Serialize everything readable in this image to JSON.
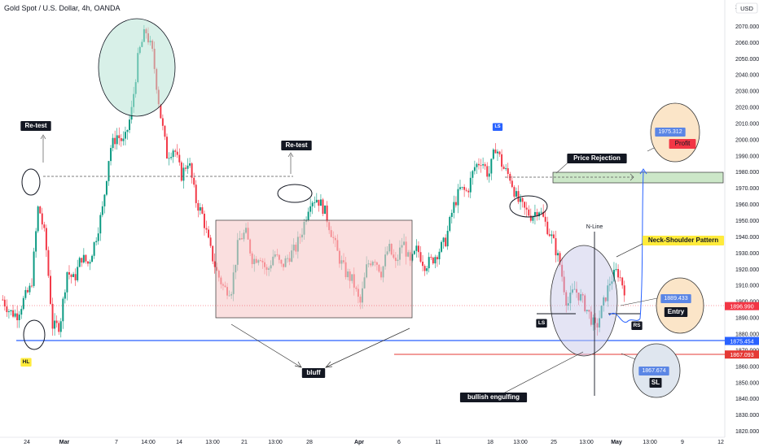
{
  "header": {
    "symbol_title": "Gold Spot / U.S. Dollar, 4h, OANDA"
  },
  "currency_button": "USD",
  "chart_data": {
    "type": "candlestick",
    "title": "Gold Spot / U.S. Dollar, 4h, OANDA",
    "ylim": [
      1816,
      2082
    ],
    "y_ticks": [
      2070,
      2060,
      2050,
      2040,
      2030,
      2020,
      2010,
      2000,
      1990,
      1980,
      1970,
      1960,
      1950,
      1940,
      1930,
      1920,
      1910,
      1900,
      1890,
      1880,
      1870,
      1860,
      1850,
      1840,
      1830,
      1820
    ],
    "y_tick_format": "2dp-comma-less-like-0.000",
    "x_tick_labels": [
      "24",
      "Mar",
      "7",
      "14:00",
      "14",
      "13:00",
      "21",
      "13:00",
      "28",
      "Apr",
      "6",
      "11",
      "18",
      "13:00",
      "25",
      "13:00",
      "May",
      "13:00",
      "9",
      "12"
    ],
    "price_path": [
      [
        1897,
        1905
      ],
      [
        1892,
        1895
      ],
      [
        1890,
        1893
      ],
      [
        1900,
        1903
      ],
      [
        1908,
        1910
      ],
      [
        1955,
        1965
      ],
      [
        1965,
        1910
      ],
      [
        1878,
        1890
      ],
      [
        1885,
        1885
      ],
      [
        1915,
        1922
      ],
      [
        1908,
        1918
      ],
      [
        1925,
        1930
      ],
      [
        1918,
        1928
      ],
      [
        1935,
        1942
      ],
      [
        1955,
        1960
      ],
      [
        1988,
        2000
      ],
      [
        2000,
        2005
      ],
      [
        1995,
        2000
      ],
      [
        2013,
        2020
      ],
      [
        2045,
        2060
      ],
      [
        2065,
        2070
      ],
      [
        2045,
        2060
      ],
      [
        2015,
        2020
      ],
      [
        1985,
        1995
      ],
      [
        1990,
        2000
      ],
      [
        1975,
        1980
      ],
      [
        1985,
        1990
      ],
      [
        1960,
        1965
      ],
      [
        1950,
        1955
      ],
      [
        1930,
        1935
      ],
      [
        1915,
        1920
      ],
      [
        1905,
        1910
      ],
      [
        1905,
        1910
      ],
      [
        1935,
        1940
      ],
      [
        1940,
        1945
      ],
      [
        1920,
        1930
      ],
      [
        1928,
        1930
      ],
      [
        1915,
        1920
      ],
      [
        1928,
        1932
      ],
      [
        1920,
        1922
      ],
      [
        1925,
        1930
      ],
      [
        1930,
        1935
      ],
      [
        1942,
        1948
      ],
      [
        1960,
        1965
      ],
      [
        1962,
        1965
      ],
      [
        1955,
        1958
      ],
      [
        1940,
        1945
      ],
      [
        1925,
        1930
      ],
      [
        1915,
        1920
      ],
      [
        1910,
        1915
      ],
      [
        1895,
        1900
      ],
      [
        1920,
        1925
      ],
      [
        1925,
        1930
      ],
      [
        1915,
        1920
      ],
      [
        1932,
        1935
      ],
      [
        1920,
        1925
      ],
      [
        1935,
        1940
      ],
      [
        1920,
        1925
      ],
      [
        1930,
        1935
      ],
      [
        1920,
        1925
      ],
      [
        1922,
        1928
      ],
      [
        1930,
        1932
      ],
      [
        1935,
        1940
      ],
      [
        1955,
        1960
      ],
      [
        1968,
        1970
      ],
      [
        1965,
        1970
      ],
      [
        1980,
        1985
      ],
      [
        1985,
        1990
      ],
      [
        1975,
        1980
      ],
      [
        1995,
        1997
      ],
      [
        1980,
        1985
      ],
      [
        1975,
        1978
      ],
      [
        1960,
        1965
      ],
      [
        1955,
        1958
      ],
      [
        1950,
        1955
      ],
      [
        1955,
        1960
      ],
      [
        1945,
        1950
      ],
      [
        1935,
        1940
      ],
      [
        1920,
        1925
      ],
      [
        1895,
        1900
      ],
      [
        1905,
        1910
      ],
      [
        1900,
        1903
      ],
      [
        1890,
        1895
      ],
      [
        1880,
        1885
      ],
      [
        1895,
        1900
      ],
      [
        1910,
        1915
      ],
      [
        1918,
        1920
      ],
      [
        1905,
        1910
      ]
    ],
    "series_colors": {
      "up": "#089981",
      "down": "#f23645"
    },
    "annotations": [
      {
        "type": "label",
        "text": "Re-test",
        "at": "x:'24'-'Mar', y:2005"
      },
      {
        "type": "label",
        "text": "Re-test",
        "at": "x:'21'-'28', y:1995"
      },
      {
        "type": "label",
        "text": "Price Rejection",
        "at": "x:'25', y:1988"
      },
      {
        "type": "label",
        "text": "Neck-Shoulder Pattern",
        "at": "x:'May', y:1938"
      },
      {
        "type": "label",
        "text": "bluff",
        "at": "x:'28', y:1856"
      },
      {
        "type": "label",
        "text": "bullish engulfing",
        "at": "x:'25', y:1842"
      },
      {
        "type": "label",
        "text": "N-Line",
        "at": "x:'13:00', y:1946"
      },
      {
        "type": "label",
        "text": "LS"
      },
      {
        "type": "label",
        "text": "RS"
      },
      {
        "type": "label",
        "text": "HL"
      },
      {
        "type": "label",
        "text": "LS",
        "badge": true
      },
      {
        "type": "target",
        "text": "Profit",
        "price": "1975.312"
      },
      {
        "type": "target",
        "text": "Entry",
        "price": "1889.433"
      },
      {
        "type": "target",
        "text": "SL",
        "price": "1867.674"
      },
      {
        "type": "dashed-line",
        "y": 1976
      },
      {
        "type": "rect",
        "name": "range-box",
        "y": [
          1890,
          1950
        ],
        "color": "#f5b7b7"
      },
      {
        "type": "rect",
        "name": "resistance-zone",
        "y": [
          1972,
          1979
        ],
        "color": "#b7ddb0"
      }
    ],
    "price_lines": [
      {
        "label": "1896.990",
        "y": 1896.99,
        "color": "#f23645"
      },
      {
        "label": "1875.454",
        "y": 1875.454,
        "color": "#2962ff"
      },
      {
        "label": "1867.093",
        "y": 1867.093,
        "color": "#e53935"
      }
    ]
  }
}
